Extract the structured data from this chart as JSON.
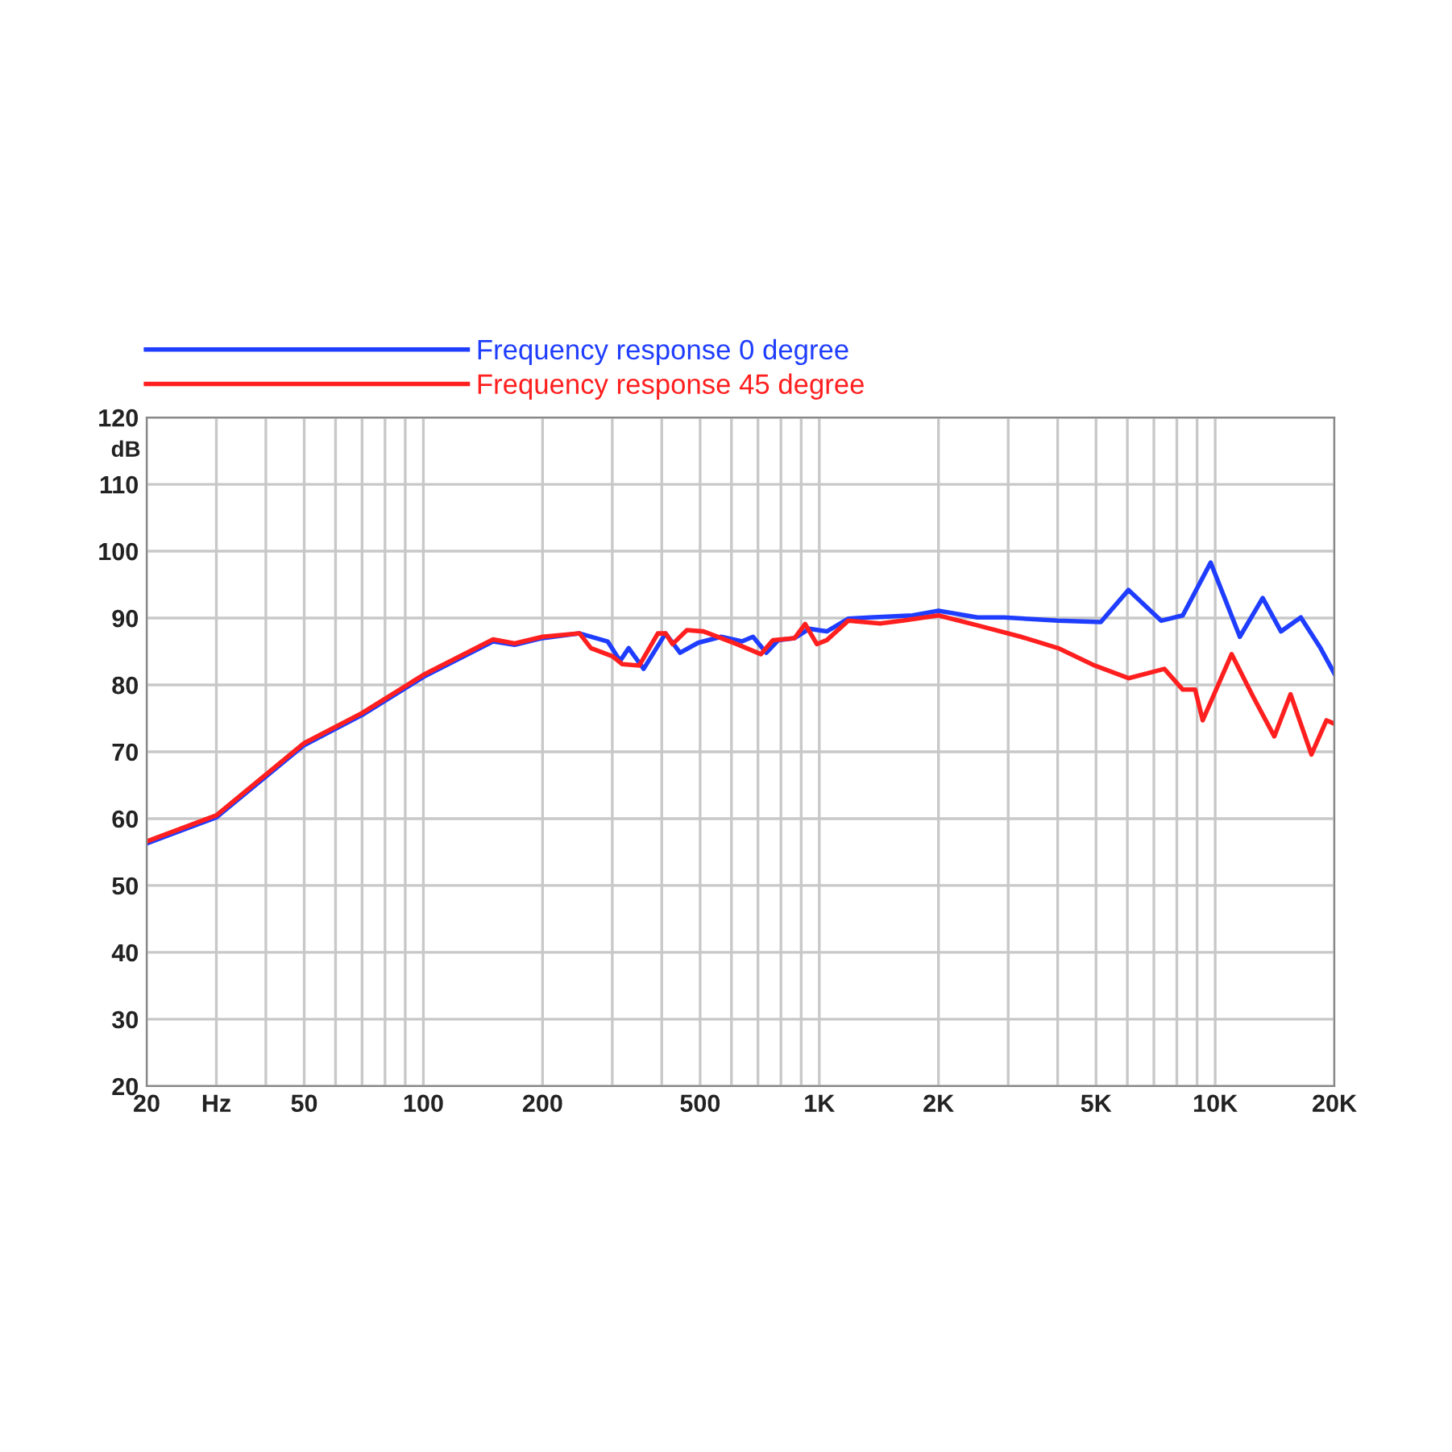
{
  "chart_data": {
    "type": "line",
    "ylabel": "dB",
    "log": "x",
    "grid": true,
    "legend": "top left",
    "marker": "none",
    "line_style": "solid",
    "xlim": [
      20,
      20000
    ],
    "ylim": [
      20,
      120
    ],
    "xticks": [
      20,
      {
        "value": 30,
        "label": "Hz"
      },
      {
        "value": 40,
        "label": null
      },
      50,
      {
        "value": 60,
        "label": null
      },
      {
        "value": 70,
        "label": null
      },
      {
        "value": 80,
        "label": null
      },
      {
        "value": 90,
        "label": null
      },
      100,
      200,
      {
        "value": 300,
        "label": null
      },
      {
        "value": 400,
        "label": null
      },
      500,
      {
        "value": 600,
        "label": null
      },
      {
        "value": 700,
        "label": null
      },
      {
        "value": 800,
        "label": null
      },
      {
        "value": 900,
        "label": null
      },
      {
        "value": 1000,
        "label": "1K"
      },
      {
        "value": 2000,
        "label": "2K"
      },
      {
        "value": 3000,
        "label": null
      },
      {
        "value": 4000,
        "label": null
      },
      {
        "value": 5000,
        "label": "5K"
      },
      {
        "value": 6000,
        "label": null
      },
      {
        "value": 7000,
        "label": null
      },
      {
        "value": 8000,
        "label": null
      },
      {
        "value": 9000,
        "label": null
      },
      {
        "value": 10000,
        "label": "10K"
      },
      {
        "value": 20000,
        "label": "20K"
      }
    ],
    "yticks": [
      20,
      30,
      40,
      50,
      60,
      70,
      80,
      90,
      100,
      110,
      120
    ],
    "series": [
      {
        "name": "Frequency response 0 degree",
        "color": "#1f3dff",
        "x": [
          20,
          30,
          50,
          70,
          100,
          150,
          170,
          200,
          248,
          292,
          314,
          330,
          360,
          409,
          445,
          494,
          565,
          638,
          680,
          735,
          788,
          866,
          943,
          1045,
          1183,
          1344,
          1720,
          2000,
          2510,
          2930,
          4010,
          5140,
          6040,
          7300,
          8280,
          9740,
          11540,
          13180,
          14660,
          16450,
          18450,
          20000
        ],
        "values": [
          56.3,
          60.2,
          71,
          75.5,
          81.2,
          86.5,
          86,
          87,
          87.7,
          86.5,
          83.6,
          85.5,
          82.4,
          87.7,
          84.8,
          86.3,
          87.2,
          86.5,
          87.2,
          84.8,
          86.7,
          87,
          88.4,
          88,
          89.9,
          90.1,
          90.4,
          91.1,
          90.1,
          90.1,
          89.6,
          89.4,
          94.2,
          89.6,
          90.4,
          98.3,
          87.2,
          93,
          88,
          90.1,
          85.5,
          81.7
        ]
      },
      {
        "name": "Frequency response 45 degree",
        "color": "#ff1f1f",
        "x": [
          20,
          30,
          50,
          70,
          100,
          150,
          170,
          200,
          248,
          265,
          300,
          318,
          351,
          391,
          409,
          426,
          463,
          510,
          619,
          712,
          764,
          866,
          921,
          986,
          1045,
          1183,
          1425,
          1622,
          2000,
          2510,
          3230,
          4010,
          4960,
          6040,
          7440,
          8280,
          8900,
          9300,
          11000,
          12450,
          14100,
          15500,
          17500,
          19100,
          20000
        ],
        "values": [
          56.6,
          60.5,
          71.3,
          75.8,
          81.5,
          86.8,
          86.2,
          87.2,
          87.7,
          85.5,
          84.3,
          83.1,
          82.9,
          87.7,
          87.7,
          86.1,
          88.2,
          88,
          86.1,
          84.6,
          86.7,
          87,
          89.1,
          86.1,
          86.7,
          89.6,
          89.2,
          89.6,
          90.4,
          88.9,
          87.2,
          85.5,
          82.9,
          81,
          82.4,
          79.3,
          79.3,
          74.7,
          84.6,
          78.3,
          72.3,
          78.6,
          69.6,
          74.7,
          74.2
        ]
      }
    ]
  }
}
